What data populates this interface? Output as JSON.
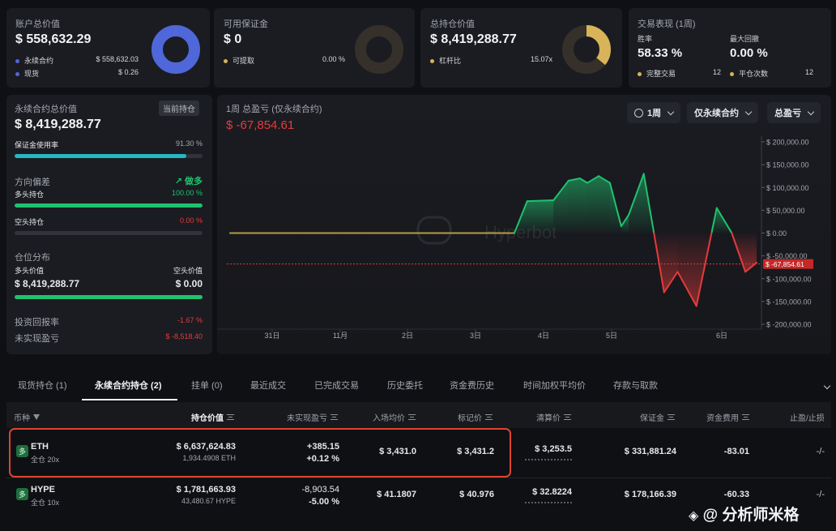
{
  "summary": {
    "account_value": {
      "label": "账户总价值",
      "value": "$ 558,632.29",
      "items": [
        {
          "label": "永续合约",
          "value": "$ 558,632.03",
          "color": "#4f67d9"
        },
        {
          "label": "现货",
          "value": "$ 0.26",
          "color": "#4f67d9"
        }
      ]
    },
    "margin": {
      "label": "可用保证金",
      "value": "$ 0",
      "items": [
        {
          "label": "可提取",
          "value": "0.00 %",
          "color": "#d8b35a"
        }
      ]
    },
    "position_value": {
      "label": "总持仓价值",
      "value": "$ 8,419,288.77",
      "items": [
        {
          "label": "杠杆比",
          "value": "15.07x",
          "color": "#d8b35a"
        }
      ]
    },
    "performance": {
      "label": "交易表现 (1周)",
      "win_rate_label": "胜率",
      "win_rate": "58.33 %",
      "drawdown_label": "最大回撤",
      "drawdown": "0.00 %",
      "done_label": "完整交易",
      "done": "12",
      "close_label": "平仓次数",
      "close": "12"
    }
  },
  "perp": {
    "title": "永续合约总价值",
    "tag": "当前持仓",
    "value": "$ 8,419,288.77",
    "margin_usage_label": "保证金使用率",
    "margin_usage": "91.30 %",
    "margin_usage_pct": 91.3,
    "direction_label": "方向偏差",
    "direction_value": "做多",
    "long_label": "多头持仓",
    "long_pct_text": "100.00 %",
    "long_pct": 100,
    "short_label": "空头持仓",
    "short_pct_text": "0.00 %",
    "short_pct": 0,
    "dist_label": "仓位分布",
    "long_value_label": "多头价值",
    "short_value_label": "空头价值",
    "long_value": "$ 8,419,288.77",
    "short_value": "$ 0.00",
    "roi_label": "投资回报率",
    "roi": "-1.67 %",
    "upnl_label": "未实现盈亏",
    "upnl": "$ -8,518.40"
  },
  "chart_panel": {
    "title": "1周 总盈亏 (仅永续合约)",
    "value": "$ -67,854.61",
    "btn_period": "1周",
    "btn_scope": "仅永续合约",
    "btn_metric": "总盈亏",
    "watermark": "Hyperbot"
  },
  "chart_data": {
    "type": "area",
    "x": [
      "31日",
      "11月",
      "2日",
      "3日",
      "4日",
      "5日",
      "6日"
    ],
    "y_ticks": [
      "$ 200,000.00",
      "$ 150,000.00",
      "$ 100,000.00",
      "$ 50,000.00",
      "$ 0.00",
      "$ -50,000.00",
      "$ -100,000.00",
      "$ -150,000.00",
      "$ -200,000.00"
    ],
    "ylim": [
      -200000,
      200000
    ],
    "current_label": "$ -67,854.61",
    "current": -67854.61,
    "series": [
      {
        "values": [
          [
            0,
            0
          ],
          [
            0.5,
            0
          ],
          [
            1,
            0
          ],
          [
            1.5,
            0
          ],
          [
            2,
            0
          ],
          [
            2.5,
            0
          ],
          [
            3,
            0
          ],
          [
            3.5,
            0
          ],
          [
            3.78,
            0
          ],
          [
            3.95,
            70000
          ],
          [
            4.3,
            72000
          ],
          [
            4.5,
            115000
          ],
          [
            4.65,
            120000
          ],
          [
            4.75,
            110000
          ],
          [
            4.9,
            125000
          ],
          [
            5.05,
            110000
          ],
          [
            5.2,
            15000
          ],
          [
            5.3,
            40000
          ],
          [
            5.5,
            130000
          ],
          [
            5.77,
            -130000
          ],
          [
            5.95,
            -85000
          ],
          [
            6.2,
            -160000
          ],
          [
            6.47,
            55000
          ],
          [
            6.67,
            0
          ],
          [
            6.85,
            -85000
          ],
          [
            7.0,
            -65000
          ]
        ]
      }
    ]
  },
  "tabs": [
    "现货持仓 (1)",
    "永续合约持仓 (2)",
    "挂单 (0)",
    "最近成交",
    "已完成交易",
    "历史委托",
    "资金费历史",
    "时间加权平均价",
    "存款与取款"
  ],
  "table": {
    "headers": [
      "币种",
      "持仓价值",
      "未实现盈亏",
      "入场均价",
      "标记价",
      "清算价",
      "保证金",
      "资金费用",
      "止盈/止损"
    ],
    "rows": [
      {
        "badge": "多",
        "coin": "ETH",
        "mode": "全仓 20x",
        "value": "$ 6,637,624.83",
        "qty": "1,934.4908 ETH",
        "pnl": "+385.15",
        "pnl_pct": "+0.12 %",
        "pnl_sign": "pos",
        "entry": "$ 3,431.0",
        "mark": "$ 3,431.2",
        "liq": "$ 3,253.5",
        "margin": "$ 331,881.24",
        "funding": "-83.01",
        "tpsl": "-/-"
      },
      {
        "badge": "多",
        "coin": "HYPE",
        "mode": "全仓 10x",
        "value": "$ 1,781,663.93",
        "qty": "43,480.67 HYPE",
        "pnl": "-8,903.54",
        "pnl_pct": "-5.00 %",
        "pnl_sign": "neg",
        "entry": "$ 41.1807",
        "mark": "$ 40.976",
        "liq": "$ 32.8224",
        "margin": "$ 178,166.39",
        "funding": "-60.33",
        "tpsl": "-/-"
      }
    ]
  },
  "footer_watermark": "@ 分析师米格",
  "colors": {
    "green": "#1fc26e",
    "red": "#e43b3b",
    "blue": "#4f67d9",
    "gold": "#d8b35a",
    "highlight": "#e0442f"
  }
}
